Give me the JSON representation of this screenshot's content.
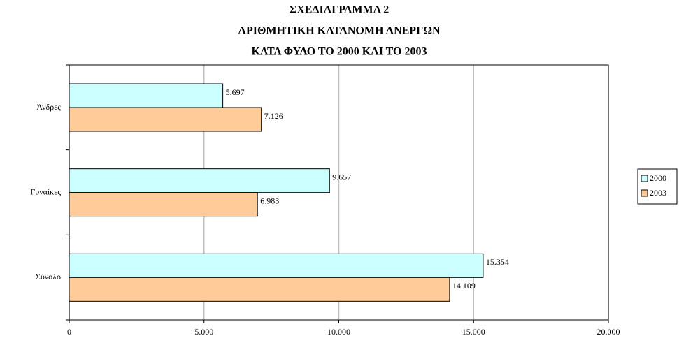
{
  "chart_data": {
    "type": "barh",
    "title": [
      "ΣΧΕΔΙΑΓΡΑΜΜΑ 2",
      "ΑΡΙΘΜΗΤΙΚΗ ΚΑΤΑΝΟΜΗ ΑΝΕΡΓΩΝ",
      "ΚΑΤΑ ΦΥΛΟ ΤΟ 2000 ΚΑΙ ΤΟ 2003"
    ],
    "categories": [
      "Άνδρες",
      "Γυναίκες",
      "Σύνολο"
    ],
    "series": [
      {
        "name": "2000",
        "color": "#ccffff",
        "values": [
          5697,
          9657,
          15354
        ],
        "value_labels": [
          "5.697",
          "9.657",
          "15.354"
        ]
      },
      {
        "name": "2003",
        "color": "#ffcc99",
        "values": [
          7126,
          6983,
          14109
        ],
        "value_labels": [
          "7.126",
          "6.983",
          "14.109"
        ]
      }
    ],
    "xlim": [
      0,
      20000
    ],
    "xticks": [
      0,
      {
        "value": 5000,
        "label": "5.000"
      },
      {
        "value": 10000,
        "label": "10.000"
      },
      {
        "value": 15000,
        "label": "15.000"
      },
      {
        "value": 20000,
        "label": "20.000"
      }
    ],
    "grid": true,
    "legend": "right"
  }
}
